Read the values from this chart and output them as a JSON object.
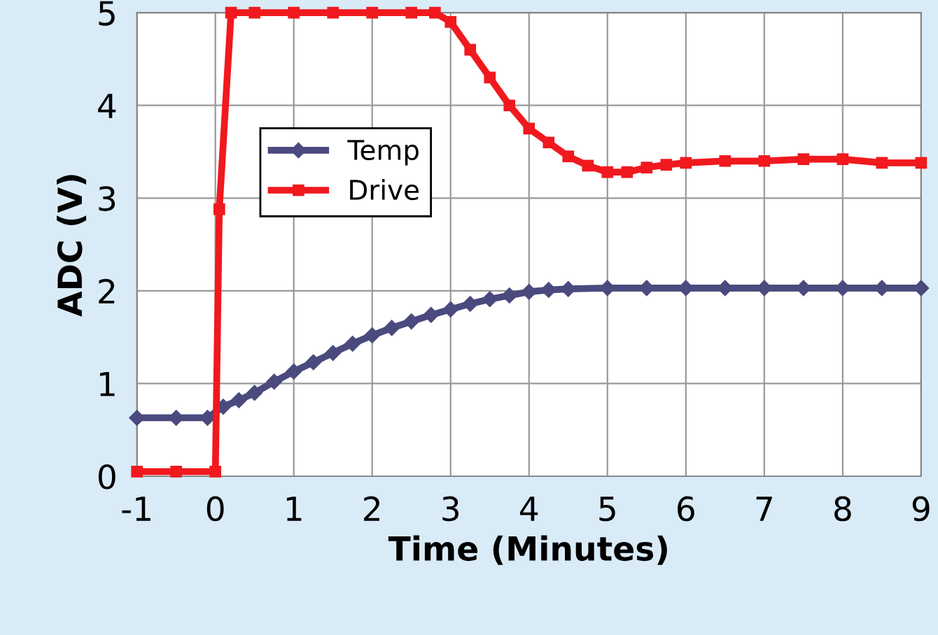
{
  "chart_data": {
    "type": "line",
    "xlabel": "Time (Minutes)",
    "ylabel": "ADC (V)",
    "xlim": [
      -1,
      9
    ],
    "xticks": [
      -1,
      0,
      1,
      2,
      3,
      4,
      5,
      6,
      7,
      8,
      9
    ],
    "ylim": [
      0,
      5
    ],
    "yticks": [
      0,
      1,
      2,
      3,
      4,
      5
    ],
    "grid": true,
    "legend": "top left",
    "series": [
      {
        "name": "Temp",
        "color": "#4b4a7e",
        "marker": "diamond",
        "x": [
          -1,
          -0.5,
          -0.1,
          0.1,
          0.3,
          0.5,
          0.75,
          1,
          1.25,
          1.5,
          1.75,
          2,
          2.25,
          2.5,
          2.75,
          3,
          3.25,
          3.5,
          3.75,
          4,
          4.25,
          4.5,
          5,
          5.5,
          6,
          6.5,
          7,
          7.5,
          8,
          8.5,
          9
        ],
        "values": [
          0.63,
          0.63,
          0.63,
          0.75,
          0.82,
          0.9,
          1.02,
          1.13,
          1.23,
          1.33,
          1.43,
          1.52,
          1.6,
          1.67,
          1.74,
          1.8,
          1.86,
          1.91,
          1.95,
          1.99,
          2.01,
          2.02,
          2.03,
          2.03,
          2.03,
          2.03,
          2.03,
          2.03,
          2.03,
          2.03,
          2.03
        ]
      },
      {
        "name": "Drive",
        "color": "#f0191e",
        "marker": "square",
        "x": [
          -1,
          -0.5,
          0,
          0.05,
          0.2,
          0.5,
          1,
          1.5,
          2,
          2.5,
          2.8,
          3,
          3.25,
          3.5,
          3.75,
          4,
          4.25,
          4.5,
          4.75,
          5,
          5.25,
          5.5,
          5.75,
          6,
          6.5,
          7,
          7.5,
          8,
          8.5,
          9
        ],
        "values": [
          0.05,
          0.05,
          0.05,
          2.88,
          5,
          5,
          5,
          5,
          5,
          5,
          5,
          4.9,
          4.6,
          4.3,
          4.0,
          3.75,
          3.6,
          3.45,
          3.35,
          3.28,
          3.28,
          3.33,
          3.36,
          3.38,
          3.4,
          3.4,
          3.42,
          3.42,
          3.38,
          3.38
        ]
      }
    ]
  }
}
